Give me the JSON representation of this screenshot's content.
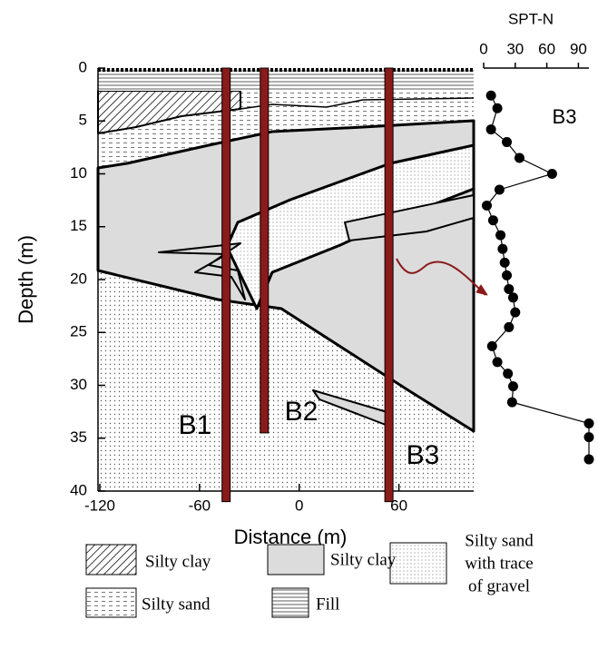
{
  "chart_data": [
    {
      "type": "section",
      "xlabel": "Distance (m)",
      "ylabel": "Depth (m)",
      "xlim": [
        -120,
        105
      ],
      "ylim": [
        0,
        40
      ],
      "xticks": [
        -120,
        -60,
        0,
        60
      ],
      "yticks": [
        0,
        5,
        10,
        15,
        20,
        25,
        30,
        35,
        40
      ],
      "boreholes": [
        {
          "label": "B1",
          "x": -44,
          "bottom": 41
        },
        {
          "label": "B2",
          "x": -21,
          "bottom": 34.5
        },
        {
          "label": "B3",
          "x": 54,
          "bottom": 41
        }
      ],
      "borehole_color": "#8b1a1a"
    },
    {
      "type": "scatter",
      "title": "SPT-N",
      "label": "B3",
      "color": "#000000",
      "x": [
        7,
        13,
        7,
        22,
        34,
        65,
        15,
        3,
        9,
        16,
        18,
        20,
        22,
        24,
        28,
        30,
        24,
        8,
        13,
        23,
        28,
        27,
        100,
        100,
        100
      ],
      "y": [
        2.6,
        3.8,
        5.8,
        7,
        8.5,
        10,
        11.5,
        13,
        14.4,
        15.8,
        17.1,
        18.4,
        19.6,
        20.9,
        21.7,
        23.1,
        24.5,
        26.3,
        27.8,
        28.9,
        30.1,
        31.6,
        33.6,
        34.9,
        37
      ],
      "xlim": [
        0,
        100
      ],
      "xticks": [
        0,
        30,
        60,
        90
      ],
      "ylim": [
        0,
        40
      ]
    }
  ],
  "legend": [
    {
      "label": [
        "Silty clay"
      ]
    },
    {
      "label": [
        "Silty clay"
      ]
    },
    {
      "label": [
        "Silty sand",
        "with trace",
        "of gravel"
      ]
    },
    {
      "label": [
        "Silty sand"
      ]
    },
    {
      "label": [
        "Fill"
      ]
    }
  ]
}
